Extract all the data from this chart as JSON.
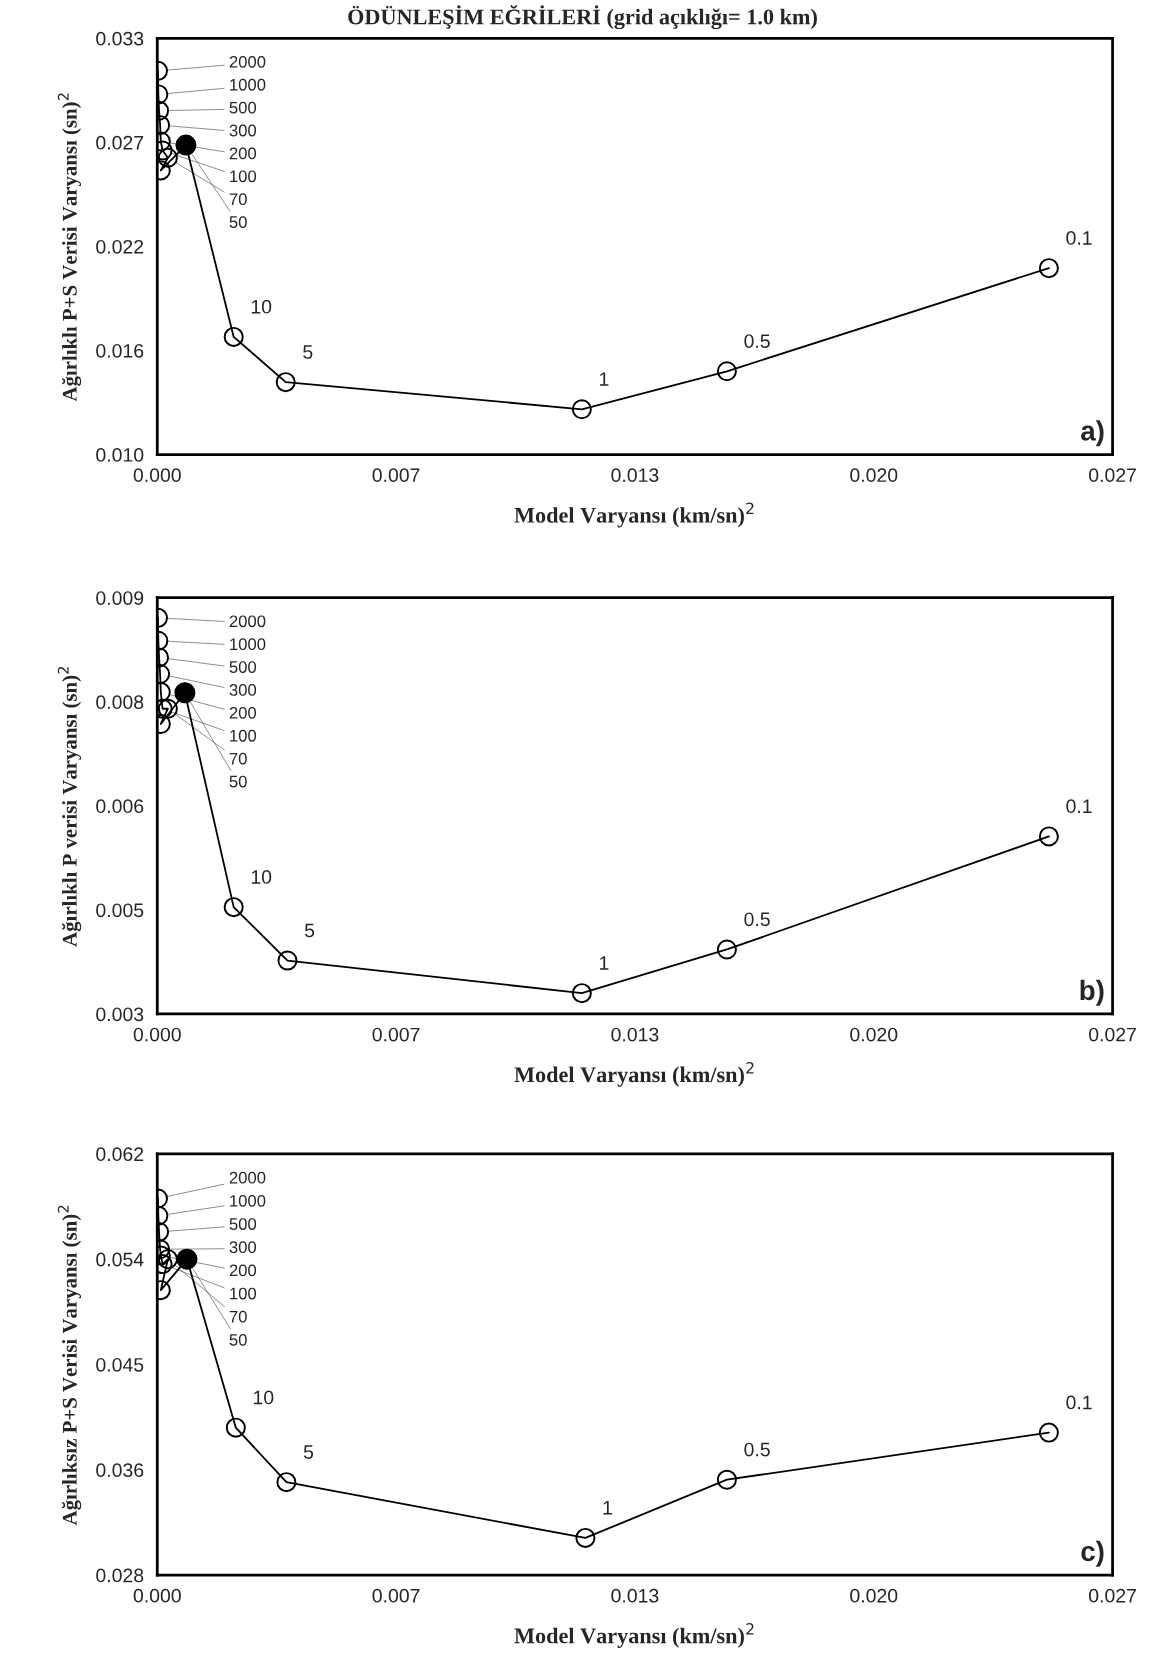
{
  "chart_data": [
    {
      "type": "line",
      "title": "ÖDÜNLEŞİM EĞRİLERİ (grid açıklığı= 1.0 km)",
      "xlabel": "Model Varyansı (km/sn)$^{2}$",
      "ylabel": "Ağırlıklı P+S Verisi Varyansı (sn)$^{2}$",
      "xlim": [
        0,
        0.027
      ],
      "ylim": [
        0.01,
        0.033
      ],
      "xticks": [
        {
          "value": 0,
          "label": "0.000"
        },
        {
          "value": 0.00675,
          "label": "0.007"
        },
        {
          "value": 0.0135,
          "label": "0.013"
        },
        {
          "value": 0.02025,
          "label": "0.020"
        },
        {
          "value": 0.027,
          "label": "0.027"
        }
      ],
      "yticks": [
        {
          "value": 0.01,
          "label": "0.010"
        },
        {
          "value": 0.01575,
          "label": "0.016"
        },
        {
          "value": 0.0215,
          "label": "0.022"
        },
        {
          "value": 0.02725,
          "label": "0.027"
        },
        {
          "value": 0.033,
          "label": "0.033"
        }
      ],
      "marker": "circle",
      "grid": false,
      "series": [
        {
          "color": "#000000",
          "x": [
            2e-05,
            3e-05,
            5e-05,
            8e-05,
            0.0001,
            0.00015,
            0.0003,
            0.0001,
            0.00081,
            0.00216,
            0.00363,
            0.012,
            0.0161,
            0.0252
          ],
          "values": [
            0.0312,
            0.0299,
            0.029,
            0.0282,
            0.0273,
            0.0268,
            0.0264,
            0.0257,
            0.0271,
            0.0165,
            0.014,
            0.0125,
            0.0146,
            0.0203
          ]
        },
        {
          "type": "scatter",
          "color": "#000000",
          "x": [
            0.00081
          ],
          "values": [
            0.0271
          ]
        }
      ],
      "annotations": [
        {
          "text": "2000",
          "x": 2e-05,
          "y": 0.0312
        },
        {
          "text": "1000",
          "x": 3e-05,
          "y": 0.0299
        },
        {
          "text": "500",
          "x": 5e-05,
          "y": 0.029
        },
        {
          "text": "300",
          "x": 8e-05,
          "y": 0.0282
        },
        {
          "text": "200",
          "x": 0.0001,
          "y": 0.0273
        },
        {
          "text": "100",
          "x": 0.00015,
          "y": 0.0268
        },
        {
          "text": "70",
          "x": 0.0003,
          "y": 0.0264
        },
        {
          "text": "50",
          "x": 0.00081,
          "y": 0.0271
        },
        {
          "text": "10",
          "x": 0.00216,
          "y": 0.0165
        },
        {
          "text": "5",
          "x": 0.00363,
          "y": 0.014
        },
        {
          "text": "1",
          "x": 0.012,
          "y": 0.0125
        },
        {
          "text": "0.5",
          "x": 0.0161,
          "y": 0.0146
        },
        {
          "text": "0.1",
          "x": 0.0252,
          "y": 0.0203
        },
        "a)"
      ]
    },
    {
      "type": "line",
      "xlabel": "Model Varyansı (km/sn)$^{2}$",
      "ylabel": "Ağırlıklı P verisi Varyansı (sn)$^{2}$",
      "xlim": [
        0,
        0.027
      ],
      "ylim": [
        0.003,
        0.009
      ],
      "xticks": [
        {
          "value": 0,
          "label": "0.000"
        },
        {
          "value": 0.00675,
          "label": "0.007"
        },
        {
          "value": 0.0135,
          "label": "0.013"
        },
        {
          "value": 0.02025,
          "label": "0.020"
        },
        {
          "value": 0.027,
          "label": "0.027"
        }
      ],
      "yticks": [
        {
          "value": 0.003,
          "label": "0.003"
        },
        {
          "value": 0.0045,
          "label": "0.005"
        },
        {
          "value": 0.006,
          "label": "0.006"
        },
        {
          "value": 0.0075,
          "label": "0.008"
        },
        {
          "value": 0.009,
          "label": "0.009"
        }
      ],
      "marker": "circle",
      "grid": false,
      "series": [
        {
          "color": "#000000",
          "x": [
            2e-05,
            3e-05,
            5e-05,
            8e-05,
            0.0001,
            0.00015,
            0.0003,
            0.0001,
            0.00078,
            0.00216,
            0.00368,
            0.012,
            0.0161,
            0.0252
          ],
          "values": [
            0.00871,
            0.00838,
            0.00814,
            0.0079,
            0.00764,
            0.0074,
            0.0074,
            0.00718,
            0.00763,
            0.00454,
            0.00377,
            0.0033,
            0.00393,
            0.00556
          ]
        },
        {
          "type": "scatter",
          "color": "#000000",
          "x": [
            0.00078
          ],
          "values": [
            0.00763
          ]
        }
      ],
      "annotations": [
        {
          "text": "2000",
          "x": 2e-05,
          "y": 0.00871
        },
        {
          "text": "1000",
          "x": 3e-05,
          "y": 0.00838
        },
        {
          "text": "500",
          "x": 5e-05,
          "y": 0.00814
        },
        {
          "text": "300",
          "x": 8e-05,
          "y": 0.0079
        },
        {
          "text": "200",
          "x": 0.0001,
          "y": 0.00764
        },
        {
          "text": "100",
          "x": 0.00015,
          "y": 0.0074
        },
        {
          "text": "70",
          "x": 0.0003,
          "y": 0.0074
        },
        {
          "text": "50",
          "x": 0.00078,
          "y": 0.00763
        },
        {
          "text": "10",
          "x": 0.00216,
          "y": 0.00454
        },
        {
          "text": "5",
          "x": 0.00368,
          "y": 0.00377
        },
        {
          "text": "1",
          "x": 0.012,
          "y": 0.0033
        },
        {
          "text": "0.5",
          "x": 0.0161,
          "y": 0.00393
        },
        {
          "text": "0.1",
          "x": 0.0252,
          "y": 0.00556
        },
        "b)"
      ]
    },
    {
      "type": "line",
      "xlabel": "Model Varyansı (km/sn)$^{2}$",
      "ylabel": "Ağırlıksız P+S Verisi Varyansı (sn)$^{2}$",
      "xlim": [
        0,
        0.027
      ],
      "ylim": [
        0.028,
        0.062
      ],
      "xticks": [
        {
          "value": 0,
          "label": "0.000"
        },
        {
          "value": 0.00675,
          "label": "0.007"
        },
        {
          "value": 0.0135,
          "label": "0.013"
        },
        {
          "value": 0.02025,
          "label": "0.020"
        },
        {
          "value": 0.027,
          "label": "0.027"
        }
      ],
      "yticks": [
        {
          "value": 0.028,
          "label": "0.028"
        },
        {
          "value": 0.0365,
          "label": "0.036"
        },
        {
          "value": 0.045,
          "label": "0.045"
        },
        {
          "value": 0.0535,
          "label": "0.054"
        },
        {
          "value": 0.062,
          "label": "0.062"
        }
      ],
      "marker": "circle",
      "grid": false,
      "series": [
        {
          "color": "#000000",
          "x": [
            2e-05,
            3e-05,
            5e-05,
            8e-05,
            0.0001,
            0.00015,
            0.0003,
            0.0001,
            0.00084,
            0.00222,
            0.00365,
            0.0121,
            0.0161,
            0.0252
          ],
          "values": [
            0.0584,
            0.057,
            0.0557,
            0.0543,
            0.0538,
            0.0531,
            0.0535,
            0.051,
            0.0535,
            0.0399,
            0.0355,
            0.031,
            0.0357,
            0.0395
          ]
        },
        {
          "type": "scatter",
          "color": "#000000",
          "x": [
            0.00084
          ],
          "values": [
            0.0535
          ]
        }
      ],
      "annotations": [
        {
          "text": "2000",
          "x": 2e-05,
          "y": 0.0584
        },
        {
          "text": "1000",
          "x": 3e-05,
          "y": 0.057
        },
        {
          "text": "500",
          "x": 5e-05,
          "y": 0.0557
        },
        {
          "text": "300",
          "x": 8e-05,
          "y": 0.0543
        },
        {
          "text": "200",
          "x": 0.0001,
          "y": 0.0538
        },
        {
          "text": "100",
          "x": 0.00015,
          "y": 0.0531
        },
        {
          "text": "70",
          "x": 0.0003,
          "y": 0.0535
        },
        {
          "text": "50",
          "x": 0.00084,
          "y": 0.0535
        },
        {
          "text": "10",
          "x": 0.00222,
          "y": 0.0399
        },
        {
          "text": "5",
          "x": 0.00365,
          "y": 0.0355
        },
        {
          "text": "1",
          "x": 0.0121,
          "y": 0.031
        },
        {
          "text": "0.5",
          "x": 0.0161,
          "y": 0.0357
        },
        {
          "text": "0.1",
          "x": 0.0252,
          "y": 0.0395
        },
        "c)"
      ]
    }
  ]
}
